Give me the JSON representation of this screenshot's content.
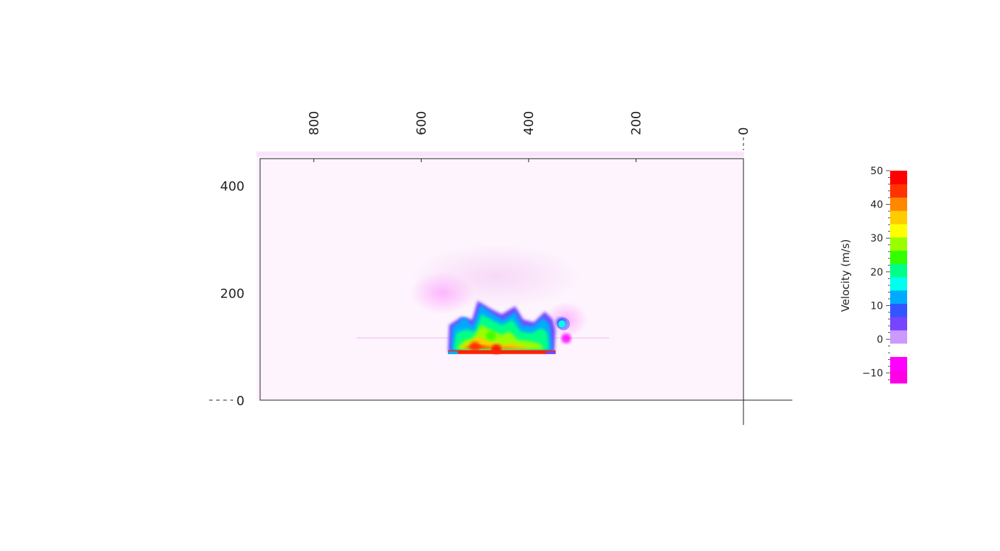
{
  "chart_data": {
    "type": "heatmap",
    "title": "",
    "x_axis": {
      "label": "",
      "direction": "decreasing left-to-right",
      "range": [
        900,
        0
      ],
      "ticks": [
        800,
        600,
        400,
        200,
        0
      ],
      "tick_labels": [
        "800",
        "600",
        "400",
        "200",
        "0"
      ],
      "position": "top, rotated labels"
    },
    "y_axis": {
      "label": "",
      "range": [
        0,
        450
      ],
      "ticks": [
        400,
        200,
        0
      ],
      "tick_labels": [
        "400",
        "200",
        "0"
      ]
    },
    "grid": false,
    "field": {
      "background_value": 0,
      "hot_region": {
        "x_range": [
          350,
          550
        ],
        "y_range": [
          87,
          190
        ],
        "max_value": 50,
        "description_values": [
          {
            "x": 460,
            "y": 95,
            "value": 50
          },
          {
            "x": 500,
            "y": 100,
            "value": 45
          },
          {
            "x": 470,
            "y": 120,
            "value": 25
          },
          {
            "x": 520,
            "y": 145,
            "value": 12
          },
          {
            "x": 340,
            "y": 145,
            "value": 10
          },
          {
            "x": 330,
            "y": 115,
            "value": -10
          }
        ]
      }
    },
    "colorbar": {
      "label": "Velocity (m/s)",
      "range": [
        -13,
        50
      ],
      "ticks": [
        50,
        40,
        30,
        20,
        10,
        0,
        -10
      ],
      "tick_labels": [
        "50",
        "40",
        "30",
        "20",
        "10",
        "0",
        "−10"
      ],
      "placement": "right",
      "colors": [
        "#ff00e6",
        "#ff00ff",
        "#ffffff",
        "#cc99ff",
        "#7744ff",
        "#3355ff",
        "#00aaff",
        "#00ffee",
        "#00ff88",
        "#33ff00",
        "#99ff00",
        "#ffff00",
        "#ffcc00",
        "#ff8800",
        "#ff3300",
        "#ff0000"
      ]
    }
  }
}
